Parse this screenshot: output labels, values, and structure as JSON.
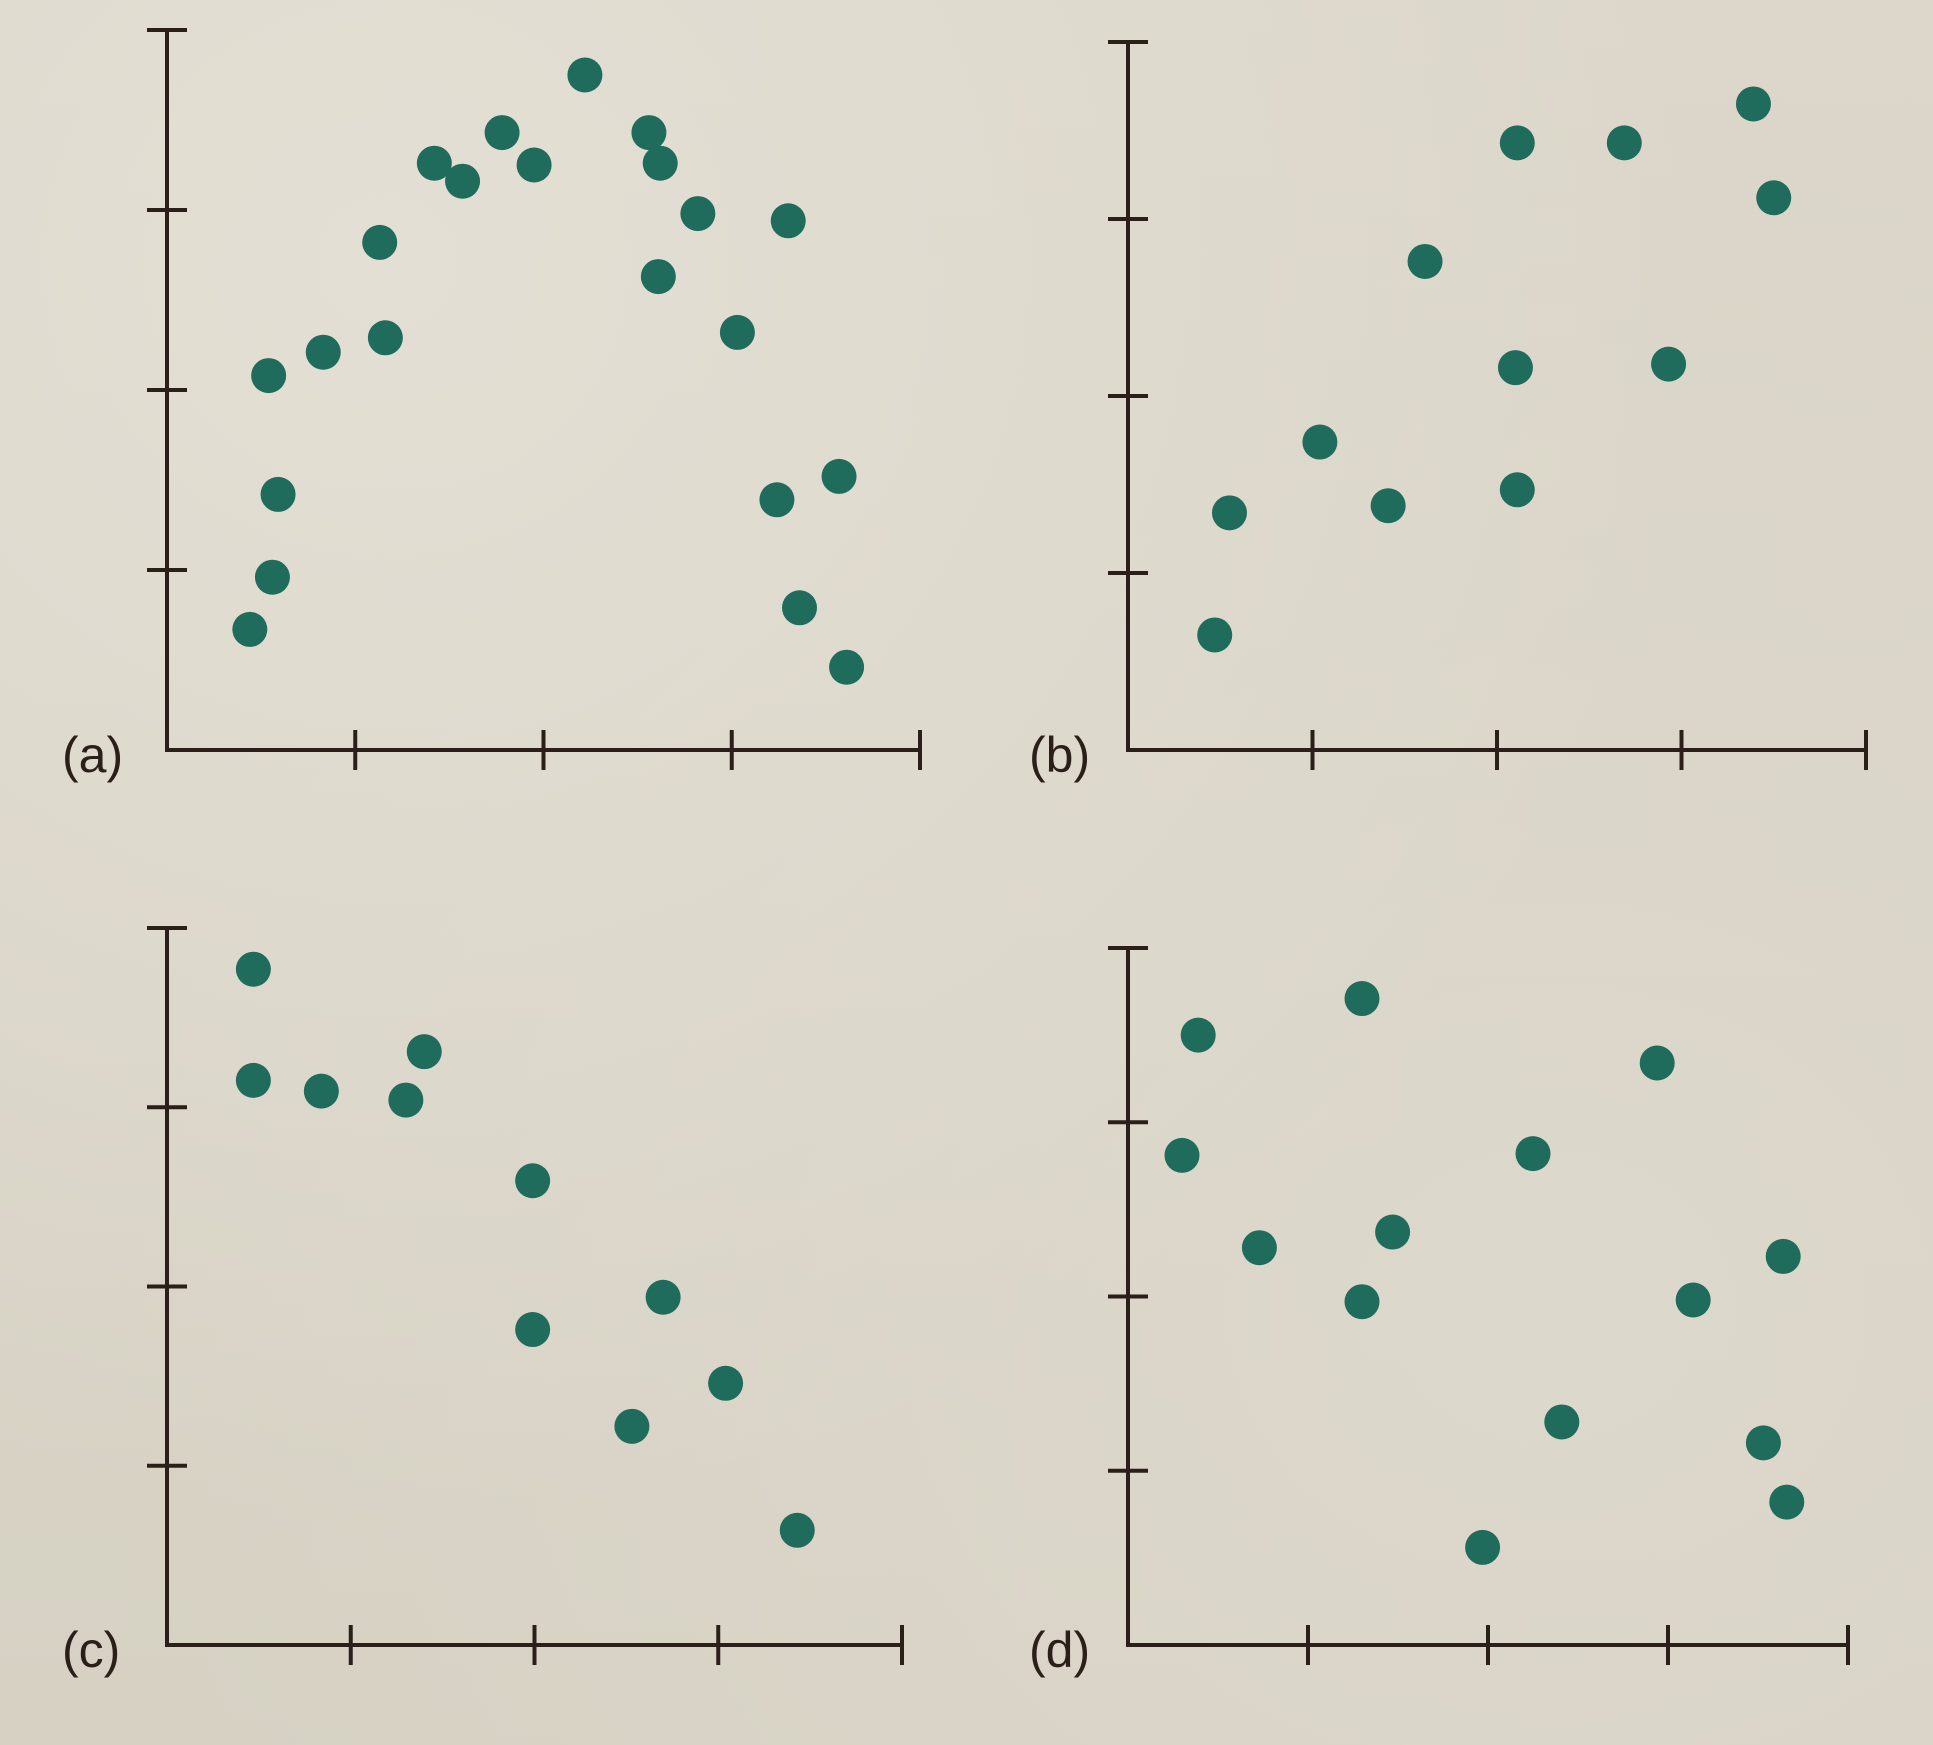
{
  "chart_data": [
    {
      "type": "scatter",
      "panel": "(a)",
      "xlim": [
        0,
        4
      ],
      "ylim": [
        0,
        4
      ],
      "x_ticks": 4,
      "y_ticks": 4,
      "grid": false,
      "points": [
        {
          "x": 0.44,
          "y": 0.67
        },
        {
          "x": 0.56,
          "y": 0.96
        },
        {
          "x": 0.59,
          "y": 1.42
        },
        {
          "x": 0.54,
          "y": 2.08
        },
        {
          "x": 0.83,
          "y": 2.21
        },
        {
          "x": 1.16,
          "y": 2.29
        },
        {
          "x": 1.13,
          "y": 2.82
        },
        {
          "x": 1.42,
          "y": 3.26
        },
        {
          "x": 1.57,
          "y": 3.16
        },
        {
          "x": 1.78,
          "y": 3.43
        },
        {
          "x": 1.95,
          "y": 3.25
        },
        {
          "x": 2.22,
          "y": 3.75
        },
        {
          "x": 2.56,
          "y": 3.43
        },
        {
          "x": 2.62,
          "y": 3.26
        },
        {
          "x": 2.61,
          "y": 2.63
        },
        {
          "x": 2.82,
          "y": 2.98
        },
        {
          "x": 3.03,
          "y": 2.32
        },
        {
          "x": 3.3,
          "y": 2.94
        },
        {
          "x": 3.24,
          "y": 1.39
        },
        {
          "x": 3.57,
          "y": 1.52
        },
        {
          "x": 3.36,
          "y": 0.79
        },
        {
          "x": 3.61,
          "y": 0.46
        }
      ]
    },
    {
      "type": "scatter",
      "panel": "(b)",
      "xlim": [
        0,
        4
      ],
      "ylim": [
        0,
        4
      ],
      "x_ticks": 4,
      "y_ticks": 4,
      "grid": false,
      "points": [
        {
          "x": 0.47,
          "y": 0.65
        },
        {
          "x": 0.55,
          "y": 1.34
        },
        {
          "x": 1.04,
          "y": 1.74
        },
        {
          "x": 1.41,
          "y": 1.38
        },
        {
          "x": 1.61,
          "y": 2.76
        },
        {
          "x": 2.11,
          "y": 1.47
        },
        {
          "x": 2.1,
          "y": 2.16
        },
        {
          "x": 2.11,
          "y": 3.43
        },
        {
          "x": 2.69,
          "y": 3.43
        },
        {
          "x": 2.93,
          "y": 2.18
        },
        {
          "x": 3.39,
          "y": 3.65
        },
        {
          "x": 3.5,
          "y": 3.12
        }
      ]
    },
    {
      "type": "scatter",
      "panel": "(c)",
      "xlim": [
        0,
        4
      ],
      "ylim": [
        0,
        4
      ],
      "x_ticks": 4,
      "y_ticks": 4,
      "grid": false,
      "points": [
        {
          "x": 0.47,
          "y": 3.77
        },
        {
          "x": 0.47,
          "y": 3.15
        },
        {
          "x": 0.84,
          "y": 3.09
        },
        {
          "x": 1.3,
          "y": 3.04
        },
        {
          "x": 1.4,
          "y": 3.31
        },
        {
          "x": 1.99,
          "y": 2.59
        },
        {
          "x": 1.99,
          "y": 1.76
        },
        {
          "x": 2.7,
          "y": 1.94
        },
        {
          "x": 3.04,
          "y": 1.46
        },
        {
          "x": 2.53,
          "y": 1.22
        },
        {
          "x": 3.43,
          "y": 0.64
        }
      ]
    },
    {
      "type": "scatter",
      "panel": "(d)",
      "xlim": [
        0,
        4
      ],
      "ylim": [
        0,
        4
      ],
      "x_ticks": 4,
      "y_ticks": 4,
      "grid": false,
      "points": [
        {
          "x": 0.39,
          "y": 3.5
        },
        {
          "x": 0.3,
          "y": 2.81
        },
        {
          "x": 0.73,
          "y": 2.28
        },
        {
          "x": 1.3,
          "y": 3.71
        },
        {
          "x": 1.3,
          "y": 1.97
        },
        {
          "x": 1.47,
          "y": 2.37
        },
        {
          "x": 2.25,
          "y": 2.82
        },
        {
          "x": 2.41,
          "y": 1.28
        },
        {
          "x": 1.97,
          "y": 0.56
        },
        {
          "x": 2.94,
          "y": 3.34
        },
        {
          "x": 3.14,
          "y": 1.98
        },
        {
          "x": 3.64,
          "y": 2.23
        },
        {
          "x": 3.53,
          "y": 1.16
        },
        {
          "x": 3.66,
          "y": 0.82
        }
      ]
    }
  ]
}
